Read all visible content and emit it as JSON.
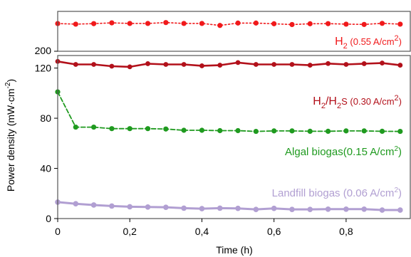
{
  "chart_data": {
    "type": "line",
    "title": "",
    "xlabel": "Time (h)",
    "ylabel": "Power density (mW·cm",
    "ylabel_sup": "-2",
    "ylabel_close": ")",
    "xlim": [
      0,
      0.98
    ],
    "ylim_lower": [
      0,
      130
    ],
    "ylim_upper": [
      200,
      240
    ],
    "x_ticks": [
      0,
      0.2,
      0.4,
      0.6,
      0.8
    ],
    "x_tick_labels": [
      "0",
      "0,2",
      "0,4",
      "0,6",
      "0,8"
    ],
    "y_ticks_lower": [
      0,
      40,
      80,
      120
    ],
    "y_tick_labels_lower": [
      "0",
      "40",
      "80",
      "120"
    ],
    "y_ticks_upper": [
      200
    ],
    "y_tick_labels_upper": [
      "200"
    ],
    "grid": false,
    "axis_break": true,
    "series": [
      {
        "label": {
          "base": "H",
          "sub": "2",
          "rest": " (0.55 A/cm",
          "sup": "2",
          "end": ")"
        },
        "panel": "upper",
        "color": "#f0191b",
        "line_style": "dotted",
        "x": [
          0,
          0.05,
          0.1,
          0.15,
          0.2,
          0.25,
          0.3,
          0.35,
          0.4,
          0.45,
          0.5,
          0.55,
          0.6,
          0.65,
          0.7,
          0.75,
          0.8,
          0.85,
          0.9,
          0.95
        ],
        "y": [
          227.8,
          227.2,
          227.7,
          228.5,
          227.9,
          227.9,
          228.8,
          227.9,
          227.9,
          225.9,
          228.3,
          228.3,
          227.6,
          226.8,
          227.6,
          227.7,
          227.2,
          226.9,
          228.0,
          227.2
        ]
      },
      {
        "label": {
          "base": "H",
          "sub": "2",
          "mid": "/H",
          "sub2": "2",
          "rest": "S (0.30 A/cm",
          "sup": "2",
          "end": ")"
        },
        "panel": "lower",
        "color": "#b2101a",
        "line_style": "solid",
        "x": [
          0,
          0.05,
          0.1,
          0.15,
          0.2,
          0.25,
          0.3,
          0.35,
          0.4,
          0.45,
          0.5,
          0.55,
          0.6,
          0.65,
          0.7,
          0.75,
          0.8,
          0.85,
          0.9,
          0.95
        ],
        "y": [
          125.3,
          122.9,
          122.9,
          121.5,
          121.0,
          123.5,
          122.9,
          122.9,
          121.8,
          122.3,
          124.4,
          122.9,
          122.9,
          122.9,
          122.3,
          123.6,
          122.9,
          123.5,
          124.0,
          122.3
        ]
      },
      {
        "label": {
          "base": "Algal biogas(0.15 A/cm",
          "sup": "2",
          "end": ")"
        },
        "panel": "lower",
        "color": "#1f9a1f",
        "line_style": "dashed",
        "x": [
          0,
          0.05,
          0.1,
          0.15,
          0.2,
          0.25,
          0.3,
          0.35,
          0.4,
          0.45,
          0.5,
          0.55,
          0.6,
          0.65,
          0.7,
          0.75,
          0.8,
          0.85,
          0.9,
          0.95
        ],
        "y": [
          101.0,
          72.9,
          72.9,
          71.7,
          71.7,
          71.7,
          71.4,
          70.4,
          70.4,
          70.1,
          70.1,
          69.5,
          69.9,
          69.9,
          69.6,
          69.6,
          69.9,
          69.9,
          69.6,
          69.5
        ]
      },
      {
        "label": {
          "base": "Landfill biogas (0.06 A/cm",
          "sup": "2",
          "end": ")"
        },
        "panel": "lower",
        "color": "#b19fd2",
        "line_style": "solid",
        "x": [
          0,
          0.05,
          0.1,
          0.15,
          0.2,
          0.25,
          0.3,
          0.35,
          0.4,
          0.45,
          0.5,
          0.55,
          0.6,
          0.65,
          0.7,
          0.75,
          0.8,
          0.85,
          0.9,
          0.95
        ],
        "y": [
          13.1,
          11.8,
          10.8,
          10.0,
          9.4,
          9.2,
          9.0,
          8.3,
          7.9,
          8.3,
          8.1,
          7.3,
          8.1,
          7.3,
          7.3,
          7.5,
          7.5,
          7.5,
          6.8,
          6.8
        ]
      }
    ]
  }
}
